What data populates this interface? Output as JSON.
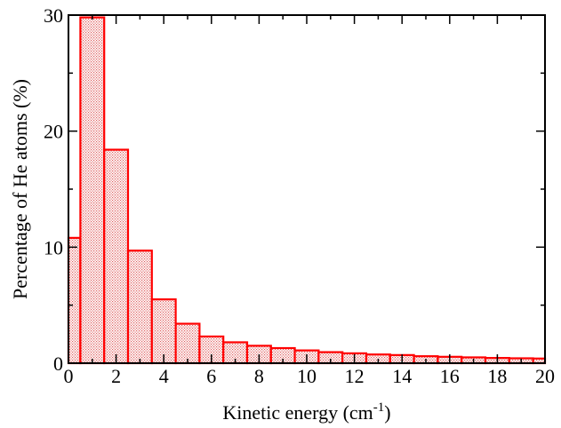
{
  "chart_data": {
    "type": "bar",
    "title": "",
    "xlabel": "Kinetic energy (cm",
    "xlabel_superscript": "-1",
    "xlabel_suffix": ")",
    "ylabel": "Percentage of He atoms (%)",
    "xlim": [
      0,
      20
    ],
    "ylim": [
      0,
      30
    ],
    "x_ticks": [
      0,
      2,
      4,
      6,
      8,
      10,
      12,
      14,
      16,
      18,
      20
    ],
    "y_ticks": [
      0,
      10,
      20,
      30
    ],
    "x_tick_labels": [
      "0",
      "2",
      "4",
      "6",
      "8",
      "10",
      "12",
      "14",
      "16",
      "18",
      "20"
    ],
    "y_tick_labels": [
      "0",
      "10",
      "20",
      "30"
    ],
    "grid": false,
    "legend": "none",
    "bin_edges": [
      0,
      0.5,
      1.5,
      2.5,
      3.5,
      4.5,
      5.5,
      6.5,
      7.5,
      8.5,
      9.5,
      10.5,
      11.5,
      12.5,
      13.5,
      14.5,
      15.5,
      16.5,
      17.5,
      18.5,
      19.5,
      20
    ],
    "values": [
      10.8,
      29.8,
      18.4,
      9.7,
      5.5,
      3.4,
      2.3,
      1.8,
      1.5,
      1.3,
      1.1,
      0.95,
      0.85,
      0.75,
      0.7,
      0.6,
      0.55,
      0.5,
      0.45,
      0.42,
      0.4
    ],
    "colors": {
      "bar_edge": "#ff0000",
      "bar_fill": "#f7c8c8",
      "axis": "#000000"
    }
  }
}
